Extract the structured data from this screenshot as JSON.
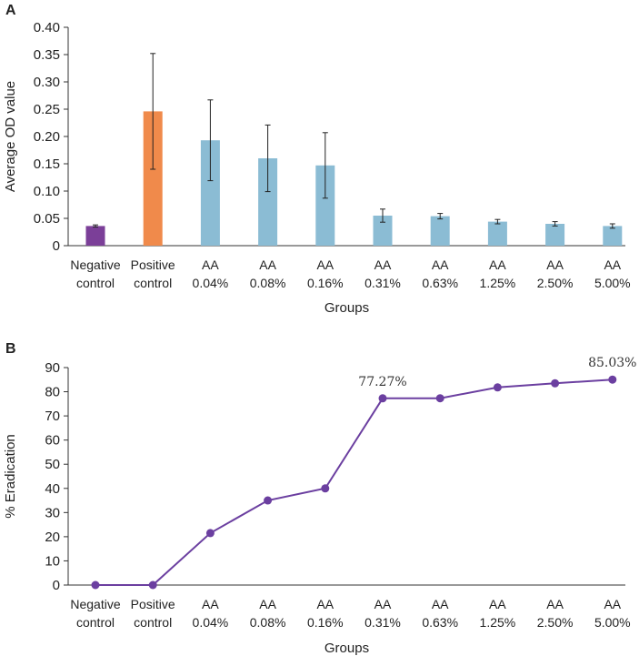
{
  "chart_data": [
    {
      "panel": "A",
      "type": "bar",
      "xlabel": "Groups",
      "ylabel": "Average OD value",
      "ylim": [
        0,
        0.4
      ],
      "yticks": [
        "0",
        "0.05",
        "0.10",
        "0.15",
        "0.20",
        "0.25",
        "0.30",
        "0.35",
        "0.40"
      ],
      "categories": [
        [
          "Negative",
          "control"
        ],
        [
          "Positive",
          "control"
        ],
        [
          "AA",
          "0.04%"
        ],
        [
          "AA",
          "0.08%"
        ],
        [
          "AA",
          "0.16%"
        ],
        [
          "AA",
          "0.31%"
        ],
        [
          "AA",
          "0.63%"
        ],
        [
          "AA",
          "1.25%"
        ],
        [
          "AA",
          "2.50%"
        ],
        [
          "AA",
          "5.00%"
        ]
      ],
      "values": [
        0.036,
        0.246,
        0.193,
        0.16,
        0.147,
        0.055,
        0.054,
        0.044,
        0.04,
        0.036
      ],
      "error": [
        0.002,
        0.106,
        0.074,
        0.061,
        0.06,
        0.012,
        0.005,
        0.004,
        0.004,
        0.004
      ],
      "colors": [
        "#7b3f98",
        "#f08a4b",
        "#8bbcd4",
        "#8bbcd4",
        "#8bbcd4",
        "#8bbcd4",
        "#8bbcd4",
        "#8bbcd4",
        "#8bbcd4",
        "#8bbcd4"
      ]
    },
    {
      "panel": "B",
      "type": "line",
      "xlabel": "Groups",
      "ylabel": "% Eradication",
      "ylim": [
        0,
        90
      ],
      "yticks": [
        "0",
        "10",
        "20",
        "30",
        "40",
        "50",
        "60",
        "70",
        "80",
        "90"
      ],
      "categories": [
        [
          "Negative",
          "control"
        ],
        [
          "Positive",
          "control"
        ],
        [
          "AA",
          "0.04%"
        ],
        [
          "AA",
          "0.08%"
        ],
        [
          "AA",
          "0.16%"
        ],
        [
          "AA",
          "0.31%"
        ],
        [
          "AA",
          "0.63%"
        ],
        [
          "AA",
          "1.25%"
        ],
        [
          "AA",
          "2.50%"
        ],
        [
          "AA",
          "5.00%"
        ]
      ],
      "values": [
        0,
        0,
        21.5,
        35,
        40,
        77.27,
        77.3,
        81.8,
        83.5,
        85.03
      ],
      "color": "#6b3fa0",
      "annotations": [
        {
          "index": 5,
          "text": "77.27%"
        },
        {
          "index": 9,
          "text": "85.03%"
        }
      ]
    }
  ]
}
